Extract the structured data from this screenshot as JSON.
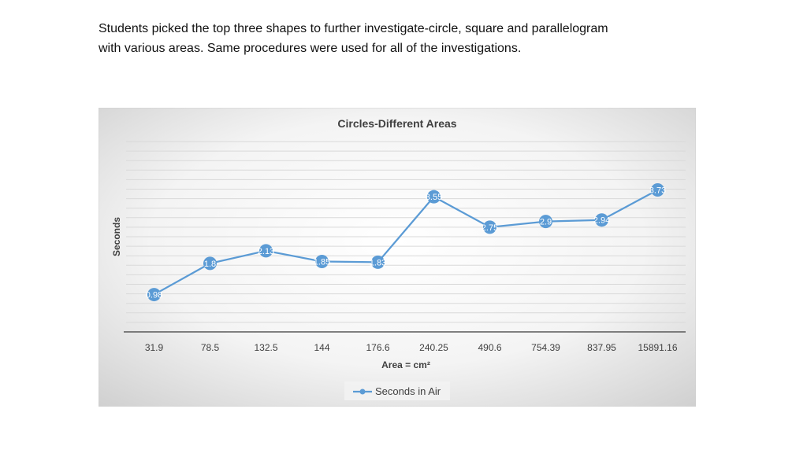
{
  "slide": {
    "paragraph_lines": [
      "Students picked the top three shapes to further investigate-circle, square and parallelogram",
      "with various areas. Same procedures were used for all of the investigations."
    ]
  },
  "chart_data": {
    "type": "line",
    "title": "Circles-Different Areas",
    "xlabel": "Area = cm²",
    "ylabel": "Seconds",
    "categories": [
      "31.9",
      "78.5",
      "132.5",
      "144",
      "176.6",
      "240.25",
      "490.6",
      "754.39",
      "837.95",
      "15891.16"
    ],
    "series": [
      {
        "name": "Seconds in Air",
        "values": [
          0.98,
          1.8,
          2.13,
          1.85,
          1.83,
          3.55,
          2.75,
          2.9,
          2.94,
          3.73
        ],
        "data_labels": [
          "0.98",
          "1.8",
          "2.13",
          "1.85",
          "1.83",
          "3.55",
          "2.75",
          "2.9",
          "2.94",
          "3.73"
        ]
      }
    ],
    "ylim": [
      0,
      5
    ],
    "grid": true,
    "legend": "bottom",
    "colors": {
      "series_line": "#5b9bd5",
      "marker": "#5b9bd5",
      "label_text": "#ffffff",
      "axis_text": "#404040",
      "title_text": "#404040",
      "gridline": "#d9d9d9",
      "axis_line": "#595959"
    }
  }
}
